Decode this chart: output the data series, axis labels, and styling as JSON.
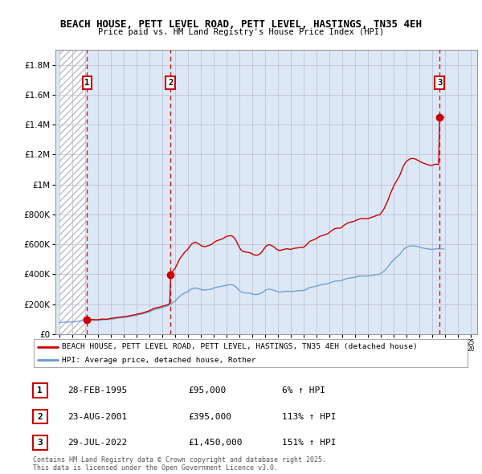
{
  "title": "BEACH HOUSE, PETT LEVEL ROAD, PETT LEVEL, HASTINGS, TN35 4EH",
  "subtitle": "Price paid vs. HM Land Registry's House Price Index (HPI)",
  "ylim": [
    0,
    1900000
  ],
  "yticks": [
    0,
    200000,
    400000,
    600000,
    800000,
    1000000,
    1200000,
    1400000,
    1600000,
    1800000
  ],
  "ytick_labels": [
    "£0",
    "£200K",
    "£400K",
    "£600K",
    "£800K",
    "£1M",
    "£1.2M",
    "£1.4M",
    "£1.6M",
    "£1.8M"
  ],
  "bg_color": "#dce8f5",
  "grid_color": "#bbbbcc",
  "sale_color": "#cc0000",
  "hpi_color": "#6699cc",
  "sale_dates": [
    1995.16,
    2001.64,
    2022.57
  ],
  "sale_prices": [
    95000,
    395000,
    1450000
  ],
  "sale_labels": [
    "1",
    "2",
    "3"
  ],
  "legend_sale": "BEACH HOUSE, PETT LEVEL ROAD, PETT LEVEL, HASTINGS, TN35 4EH (detached house)",
  "legend_hpi": "HPI: Average price, detached house, Rother",
  "table_data": [
    [
      "1",
      "28-FEB-1995",
      "£95,000",
      "6% ↑ HPI"
    ],
    [
      "2",
      "23-AUG-2001",
      "£395,000",
      "113% ↑ HPI"
    ],
    [
      "3",
      "29-JUL-2022",
      "£1,450,000",
      "151% ↑ HPI"
    ]
  ],
  "footer": "Contains HM Land Registry data © Crown copyright and database right 2025.\nThis data is licensed under the Open Government Licence v3.0.",
  "hpi_monthly_base": [
    75000,
    76000,
    77000,
    78000,
    78500,
    79000,
    79500,
    80000,
    80500,
    81000,
    81500,
    82000,
    83000,
    84000,
    85000,
    86000,
    87000,
    87500,
    88000,
    88500,
    89000,
    89500,
    90000,
    90500,
    91000,
    91500,
    92000,
    92500,
    93000,
    93200,
    93400,
    93600,
    93800,
    94000,
    94200,
    94400,
    94600,
    94800,
    95000,
    95500,
    96000,
    96500,
    97000,
    97500,
    98000,
    98500,
    99000,
    99500,
    100000,
    101000,
    102000,
    103000,
    104000,
    105000,
    106000,
    107000,
    108000,
    109000,
    110000,
    111000,
    112000,
    113000,
    114000,
    115000,
    116000,
    117000,
    118000,
    119000,
    120000,
    121000,
    122000,
    123000,
    125000,
    127000,
    129000,
    131000,
    133000,
    135000,
    137000,
    139000,
    141000,
    143000,
    145000,
    147000,
    150000,
    153000,
    156000,
    159000,
    162000,
    164000,
    166000,
    168000,
    170000,
    172000,
    174000,
    176000,
    178000,
    180000,
    182000,
    185000,
    188000,
    190000,
    193000,
    196000,
    200000,
    205000,
    210000,
    215000,
    220000,
    228000,
    235000,
    242000,
    250000,
    255000,
    260000,
    265000,
    270000,
    275000,
    278000,
    280000,
    285000,
    290000,
    295000,
    300000,
    303000,
    305000,
    307000,
    309000,
    308000,
    307000,
    305000,
    303000,
    300000,
    298000,
    296000,
    295000,
    295000,
    296000,
    297000,
    298000,
    299000,
    300000,
    302000,
    305000,
    308000,
    311000,
    313000,
    315000,
    316000,
    317000,
    318000,
    319000,
    320000,
    321000,
    323000,
    325000,
    327000,
    328000,
    329000,
    330000,
    330000,
    329000,
    327000,
    323000,
    318000,
    312000,
    305000,
    298000,
    292000,
    287000,
    283000,
    280000,
    278000,
    276000,
    275000,
    274000,
    273000,
    272000,
    271000,
    270000,
    268000,
    267000,
    266000,
    265000,
    265000,
    266000,
    268000,
    270000,
    273000,
    277000,
    282000,
    287000,
    292000,
    296000,
    299000,
    301000,
    301000,
    300000,
    298000,
    296000,
    294000,
    291000,
    288000,
    285000,
    283000,
    281000,
    280000,
    280000,
    280000,
    281000,
    282000,
    283000,
    284000,
    285000,
    285000,
    285000,
    285000,
    286000,
    287000,
    288000,
    288000,
    289000,
    290000,
    291000,
    292000,
    292000,
    292000,
    292000,
    293000,
    295000,
    298000,
    301000,
    305000,
    308000,
    311000,
    313000,
    315000,
    317000,
    318000,
    320000,
    322000,
    324000,
    326000,
    328000,
    330000,
    331000,
    332000,
    333000,
    334000,
    335000,
    336000,
    337000,
    340000,
    343000,
    346000,
    349000,
    352000,
    354000,
    355000,
    356000,
    357000,
    358000,
    359000,
    360000,
    362000,
    365000,
    367000,
    369000,
    371000,
    373000,
    374000,
    375000,
    376000,
    377000,
    378000,
    379000,
    381000,
    383000,
    385000,
    386000,
    387000,
    388000,
    388000,
    388000,
    388000,
    388000,
    388000,
    388000,
    389000,
    390000,
    391000,
    392000,
    393000,
    394000,
    395000,
    396000,
    397000,
    398000,
    399000,
    400000,
    405000,
    410000,
    415000,
    420000,
    428000,
    435000,
    443000,
    452000,
    462000,
    472000,
    480000,
    488000,
    495000,
    502000,
    508000,
    514000,
    520000,
    527000,
    535000,
    544000,
    554000,
    563000,
    570000,
    576000,
    580000,
    583000,
    585000,
    587000,
    588000,
    589000,
    590000,
    590000,
    589000,
    588000,
    586000,
    584000,
    582000,
    580000,
    578000,
    576000,
    575000,
    574000,
    573000,
    572000,
    571000,
    570000,
    569000,
    568000,
    568000,
    568000,
    568000,
    569000,
    570000,
    570000,
    570000,
    570000,
    570000,
    570000,
    570000,
    570000
  ]
}
